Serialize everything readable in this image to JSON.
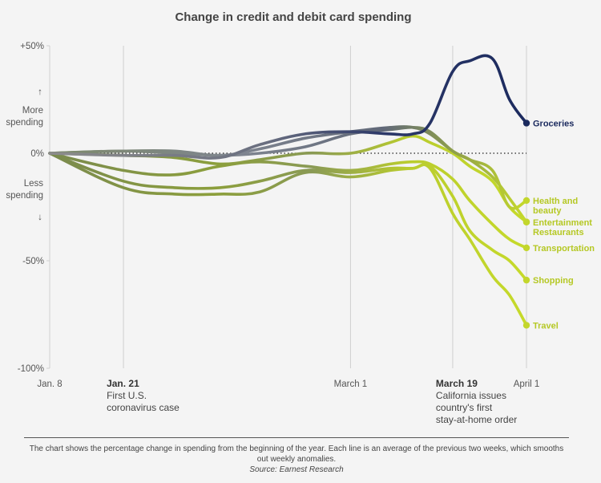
{
  "chart_data": {
    "type": "line",
    "title": "Change in credit and debit card spending",
    "ylim": [
      -100,
      50
    ],
    "y_ticks": [
      "+50%",
      "0%",
      "-50%",
      "-100%"
    ],
    "y_annotations": {
      "up": "More spending",
      "down": "Less spending",
      "up_arrow": "↑",
      "down_arrow": "↓"
    },
    "x_ticks": [
      "Jan. 8",
      "Jan. 21",
      "March 1",
      "March 19",
      "April 1"
    ],
    "x_annotations": {
      "jan21": {
        "bold": "Jan. 21",
        "lines": [
          "First U.S.",
          "coronavirus case"
        ]
      },
      "mar19": {
        "bold": "March 19",
        "lines": [
          "California issues",
          "country's first",
          "stay-at-home order"
        ]
      }
    },
    "x_dates": [
      "2020-01-08",
      "2020-01-21",
      "2020-01-30",
      "2020-02-07",
      "2020-02-14",
      "2020-02-22",
      "2020-03-01",
      "2020-03-08",
      "2020-03-12",
      "2020-03-15",
      "2020-03-19",
      "2020-03-22",
      "2020-03-26",
      "2020-03-29",
      "2020-04-01"
    ],
    "series": [
      {
        "name": "Groceries",
        "color": "#1b2a5e",
        "values": [
          0,
          -1,
          -1,
          -2,
          4,
          9,
          10,
          9,
          9,
          14,
          38,
          43,
          44,
          25,
          14
        ]
      },
      {
        "name": "Health and beauty",
        "color": "#c3d62c",
        "values": [
          0,
          1,
          1,
          -1,
          2,
          7,
          10,
          12,
          12,
          9,
          1,
          -3,
          -8,
          -25,
          -22
        ]
      },
      {
        "name": "Entertainment",
        "color": "#c3d62c",
        "values": [
          0,
          1,
          0,
          -1,
          0,
          3,
          9,
          11,
          12,
          10,
          1,
          -3,
          -11,
          -21,
          -32
        ]
      },
      {
        "name": "Restaurants",
        "color": "#c3d62c",
        "values": [
          0,
          -1,
          -2,
          -5,
          -3,
          0,
          0,
          5,
          8,
          5,
          0,
          -6,
          -13,
          -25,
          -32
        ]
      },
      {
        "name": "Transportation",
        "color": "#c3d62c",
        "values": [
          0,
          -8,
          -10,
          -6,
          -4,
          -6,
          -8,
          -5,
          -4,
          -5,
          -12,
          -22,
          -33,
          -40,
          -44
        ]
      },
      {
        "name": "Shopping",
        "color": "#c3d62c",
        "values": [
          0,
          -13,
          -16,
          -16,
          -13,
          -8,
          -9,
          -7,
          -7,
          -6,
          -20,
          -36,
          -45,
          -50,
          -59
        ]
      },
      {
        "name": "Travel",
        "color": "#c3d62c",
        "values": [
          0,
          -16,
          -19,
          -19,
          -18,
          -9,
          -11,
          -8,
          -7,
          -7,
          -28,
          -40,
          -57,
          -66,
          -80
        ]
      }
    ],
    "grid": {
      "zero_line": "dotted",
      "vertical_gridlines": true
    }
  },
  "footer": {
    "note": "The chart shows the percentage change in spending from the beginning of the year. Each line is an average of the previous two weeks, which smooths out weekly anomalies.",
    "source": "Source: Earnest Research"
  }
}
